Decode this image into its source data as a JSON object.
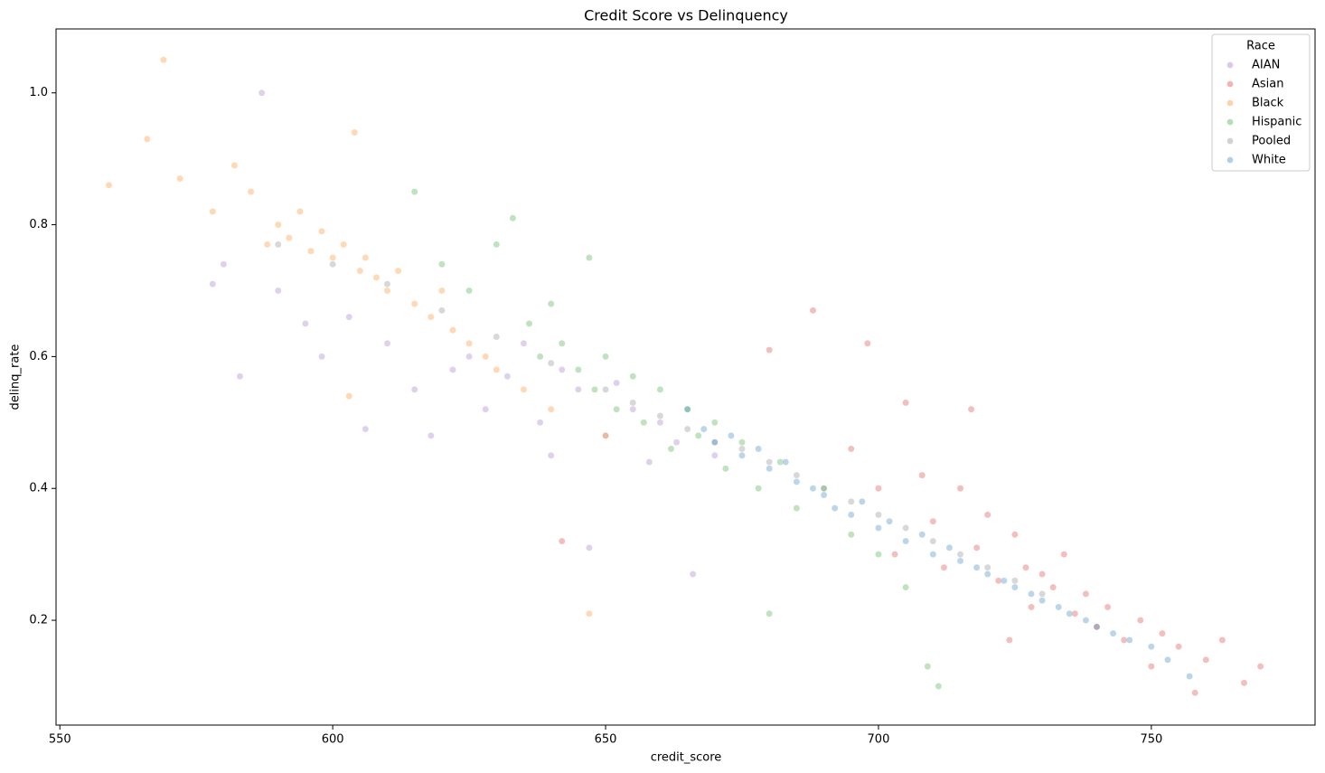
{
  "chart_data": {
    "type": "scatter",
    "title": "Credit Score vs Delinquency",
    "x_label": "credit_score",
    "y_label": "delinq_rate",
    "legend_title": "Race",
    "legend_position": "upper right",
    "xlim": [
      549.3,
      780
    ],
    "ylim": [
      0.041,
      1.097
    ],
    "xticks": [
      550,
      600,
      650,
      700,
      750
    ],
    "yticks": [
      0.2,
      0.4,
      0.6,
      0.8,
      {
        "value": 1,
        "label": "1.0"
      }
    ],
    "series": [
      {
        "name": "AIAN",
        "color": "#9467bd",
        "x": [
          578,
          580,
          583,
          587,
          590,
          595,
          598,
          603,
          606,
          610,
          615,
          618,
          622,
          625,
          628,
          632,
          635,
          638,
          640,
          642,
          645,
          647,
          650,
          652,
          655,
          658,
          660,
          663,
          666,
          670
        ],
        "values": [
          0.71,
          0.74,
          0.57,
          1.0,
          0.7,
          0.65,
          0.6,
          0.66,
          0.49,
          0.62,
          0.55,
          0.48,
          0.58,
          0.6,
          0.52,
          0.57,
          0.62,
          0.5,
          0.45,
          0.58,
          0.55,
          0.31,
          0.48,
          0.56,
          0.52,
          0.44,
          0.5,
          0.47,
          0.27,
          0.45
        ]
      },
      {
        "name": "Asian",
        "color": "#d62728",
        "x": [
          642,
          680,
          688,
          695,
          698,
          700,
          703,
          705,
          708,
          710,
          712,
          715,
          717,
          718,
          720,
          722,
          724,
          725,
          727,
          728,
          730,
          732,
          734,
          736,
          738,
          740,
          742,
          745,
          748,
          750,
          752,
          755,
          758,
          760,
          763,
          767,
          770
        ],
        "values": [
          0.32,
          0.61,
          0.67,
          0.46,
          0.62,
          0.4,
          0.3,
          0.53,
          0.42,
          0.35,
          0.28,
          0.4,
          0.52,
          0.31,
          0.36,
          0.26,
          0.17,
          0.33,
          0.28,
          0.22,
          0.27,
          0.25,
          0.3,
          0.21,
          0.24,
          0.19,
          0.22,
          0.17,
          0.2,
          0.13,
          0.18,
          0.16,
          0.09,
          0.14,
          0.17,
          0.105,
          0.13
        ]
      },
      {
        "name": "Black",
        "color": "#ff7f0e",
        "x": [
          559,
          566,
          569,
          572,
          578,
          582,
          585,
          588,
          590,
          592,
          594,
          596,
          598,
          600,
          602,
          603,
          604,
          605,
          606,
          608,
          610,
          612,
          615,
          618,
          620,
          622,
          625,
          628,
          630,
          635,
          640,
          647,
          650
        ],
        "values": [
          0.86,
          0.93,
          1.05,
          0.87,
          0.82,
          0.89,
          0.85,
          0.77,
          0.8,
          0.78,
          0.82,
          0.76,
          0.79,
          0.75,
          0.77,
          0.54,
          0.94,
          0.73,
          0.75,
          0.72,
          0.7,
          0.73,
          0.68,
          0.66,
          0.7,
          0.64,
          0.62,
          0.6,
          0.58,
          0.55,
          0.52,
          0.21,
          0.48
        ]
      },
      {
        "name": "Hispanic",
        "color": "#2ca02c",
        "x": [
          615,
          620,
          625,
          630,
          633,
          636,
          638,
          640,
          642,
          645,
          647,
          648,
          650,
          652,
          655,
          657,
          660,
          662,
          665,
          667,
          670,
          672,
          675,
          678,
          680,
          682,
          685,
          690,
          695,
          700,
          705,
          709,
          711
        ],
        "values": [
          0.85,
          0.74,
          0.7,
          0.77,
          0.81,
          0.65,
          0.6,
          0.68,
          0.62,
          0.58,
          0.75,
          0.55,
          0.6,
          0.52,
          0.57,
          0.5,
          0.55,
          0.46,
          0.52,
          0.48,
          0.5,
          0.43,
          0.47,
          0.4,
          0.21,
          0.44,
          0.37,
          0.4,
          0.33,
          0.3,
          0.25,
          0.13,
          0.1
        ]
      },
      {
        "name": "Pooled",
        "color": "#7f7f7f",
        "x": [
          590,
          600,
          610,
          620,
          630,
          640,
          650,
          655,
          660,
          665,
          670,
          675,
          680,
          685,
          690,
          695,
          700,
          705,
          710,
          715,
          720,
          725,
          730
        ],
        "values": [
          0.77,
          0.74,
          0.71,
          0.67,
          0.63,
          0.59,
          0.55,
          0.53,
          0.51,
          0.49,
          0.47,
          0.46,
          0.44,
          0.42,
          0.4,
          0.38,
          0.36,
          0.34,
          0.32,
          0.3,
          0.28,
          0.26,
          0.24
        ]
      },
      {
        "name": "White",
        "color": "#1f77b4",
        "x": [
          665,
          668,
          670,
          673,
          675,
          678,
          680,
          683,
          685,
          688,
          690,
          692,
          695,
          697,
          700,
          702,
          705,
          708,
          710,
          713,
          715,
          718,
          720,
          723,
          725,
          728,
          730,
          733,
          735,
          738,
          740,
          743,
          746,
          750,
          753,
          757
        ],
        "values": [
          0.52,
          0.49,
          0.47,
          0.48,
          0.45,
          0.46,
          0.43,
          0.44,
          0.41,
          0.4,
          0.39,
          0.37,
          0.36,
          0.38,
          0.34,
          0.35,
          0.32,
          0.33,
          0.3,
          0.31,
          0.29,
          0.28,
          0.27,
          0.26,
          0.25,
          0.24,
          0.23,
          0.22,
          0.21,
          0.2,
          0.19,
          0.18,
          0.17,
          0.16,
          0.14,
          0.115
        ]
      }
    ]
  }
}
